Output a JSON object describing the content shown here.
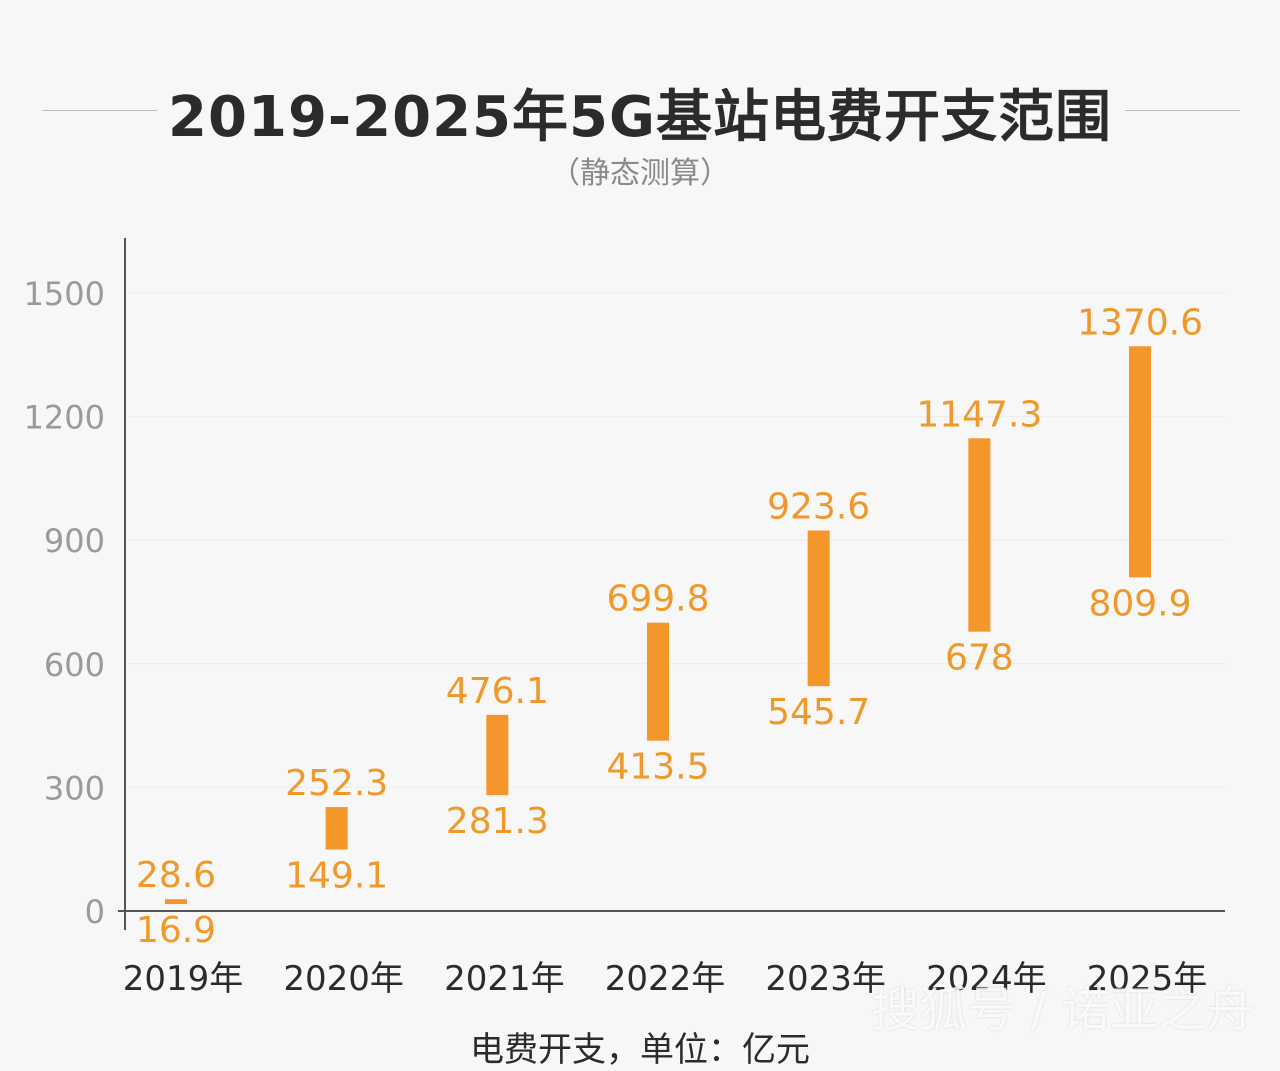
{
  "chart_data": {
    "type": "bar",
    "title": "2019-2025年5G基站电费开支范围",
    "subtitle": "（静态测算）",
    "categories": [
      "2019年",
      "2020年",
      "2021年",
      "2022年",
      "2023年",
      "2024年",
      "2025年"
    ],
    "series": [
      {
        "name": "",
        "low": [
          16.9,
          149.1,
          281.3,
          413.5,
          545.7,
          678,
          809.9
        ],
        "high": [
          28.6,
          252.3,
          476.1,
          699.8,
          923.6,
          1147.3,
          1370.6
        ]
      }
    ],
    "low_labels": [
      "16.9",
      "149.1",
      "281.3",
      "413.5",
      "545.7",
      "678",
      "809.9"
    ],
    "high_labels": [
      "28.6",
      "252.3",
      "476.1",
      "699.8",
      "923.6",
      "1147.3",
      "1370.6"
    ],
    "y_ticks": [
      0,
      300,
      600,
      900,
      1200,
      1500
    ],
    "y_tick_labels": [
      "0",
      "300",
      "600",
      "900",
      "1200",
      "1500"
    ],
    "ylim": [
      0,
      1500
    ],
    "grid": true,
    "bar_color": "#f5962a",
    "label_color": "#f0982a"
  },
  "footer": "电费开支，单位：亿元",
  "watermark": "搜狐号 / 诺亚之舟"
}
